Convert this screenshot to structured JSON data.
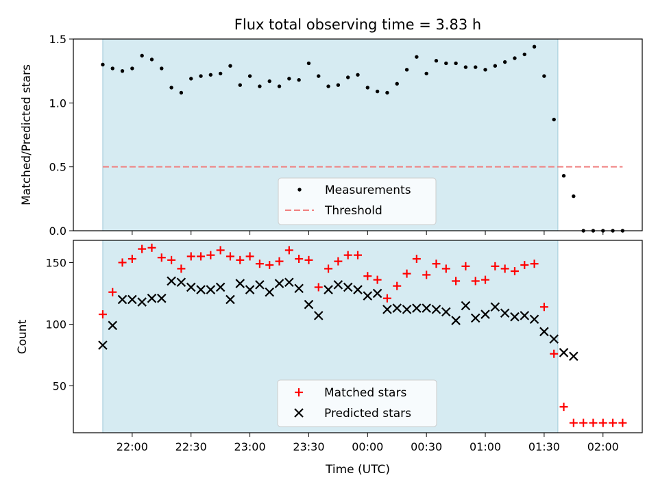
{
  "chart_data": [
    {
      "type": "scatter",
      "title": "Flux total observing time = 3.83 h",
      "xlabel": "",
      "ylabel": "Matched/Predicted stars",
      "ylim": [
        0,
        1.5
      ],
      "yticks": [
        "0.0",
        "0.5",
        "1.0",
        "1.5"
      ],
      "grid": false,
      "legend_position": "bottom-center",
      "x": [
        "21:45",
        "21:50",
        "21:55",
        "22:00",
        "22:05",
        "22:10",
        "22:15",
        "22:20",
        "22:25",
        "22:30",
        "22:35",
        "22:40",
        "22:45",
        "22:50",
        "22:55",
        "23:00",
        "23:05",
        "23:10",
        "23:15",
        "23:20",
        "23:25",
        "23:30",
        "23:35",
        "23:40",
        "23:45",
        "23:50",
        "23:55",
        "00:00",
        "00:05",
        "00:10",
        "00:15",
        "00:20",
        "00:25",
        "00:30",
        "00:35",
        "00:40",
        "00:45",
        "00:50",
        "00:55",
        "01:00",
        "01:05",
        "01:10",
        "01:15",
        "01:20",
        "01:25",
        "01:30",
        "01:35",
        "01:40",
        "01:45",
        "01:50",
        "01:55",
        "02:00",
        "02:05",
        "02:10"
      ],
      "series": [
        {
          "name": "Measurements",
          "marker": "dot",
          "color": "#000000",
          "values": [
            1.3,
            1.27,
            1.25,
            1.27,
            1.37,
            1.34,
            1.27,
            1.12,
            1.08,
            1.19,
            1.21,
            1.22,
            1.23,
            1.29,
            1.14,
            1.21,
            1.13,
            1.17,
            1.13,
            1.19,
            1.18,
            1.31,
            1.21,
            1.13,
            1.14,
            1.2,
            1.22,
            1.12,
            1.09,
            1.08,
            1.15,
            1.26,
            1.36,
            1.23,
            1.33,
            1.31,
            1.31,
            1.28,
            1.28,
            1.26,
            1.29,
            1.32,
            1.35,
            1.38,
            1.44,
            1.21,
            0.87,
            0.43,
            0.27,
            0.0,
            0.0,
            0.0,
            0.0,
            0.0
          ]
        },
        {
          "name": "Threshold",
          "style": "dashed",
          "color": "#f08080",
          "values": [
            0.5,
            0.5
          ],
          "x_range": [
            "21:45",
            "02:10"
          ]
        }
      ],
      "shaded_region": {
        "x_start": "21:45",
        "x_end": "01:37",
        "color": "#add8e6"
      }
    },
    {
      "type": "scatter",
      "title": "",
      "xlabel": "Time (UTC)",
      "ylabel": "Count",
      "ylim": [
        12,
        168
      ],
      "yticks": [
        "50",
        "100",
        "150"
      ],
      "xticks": [
        "22:00",
        "22:30",
        "23:00",
        "23:30",
        "00:00",
        "00:30",
        "01:00",
        "01:30",
        "02:00"
      ],
      "grid": false,
      "legend_position": "bottom-center",
      "x": [
        "21:45",
        "21:50",
        "21:55",
        "22:00",
        "22:05",
        "22:10",
        "22:15",
        "22:20",
        "22:25",
        "22:30",
        "22:35",
        "22:40",
        "22:45",
        "22:50",
        "22:55",
        "23:00",
        "23:05",
        "23:10",
        "23:15",
        "23:20",
        "23:25",
        "23:30",
        "23:35",
        "23:40",
        "23:45",
        "23:50",
        "23:55",
        "00:00",
        "00:05",
        "00:10",
        "00:15",
        "00:20",
        "00:25",
        "00:30",
        "00:35",
        "00:40",
        "00:45",
        "00:50",
        "00:55",
        "01:00",
        "01:05",
        "01:10",
        "01:15",
        "01:20",
        "01:25",
        "01:30",
        "01:35",
        "01:40",
        "01:45",
        "01:50",
        "01:55",
        "02:00",
        "02:05",
        "02:10"
      ],
      "series": [
        {
          "name": "Matched stars",
          "marker": "plus",
          "color": "#ff0000",
          "values": [
            108,
            126,
            150,
            153,
            161,
            162,
            154,
            152,
            145,
            155,
            155,
            156,
            160,
            155,
            152,
            155,
            149,
            148,
            151,
            160,
            153,
            152,
            130,
            145,
            151,
            156,
            156,
            139,
            136,
            121,
            131,
            141,
            153,
            140,
            149,
            145,
            135,
            147,
            135,
            136,
            147,
            145,
            143,
            148,
            149,
            114,
            76,
            33,
            20,
            20,
            20,
            20,
            20,
            20
          ]
        },
        {
          "name": "Predicted stars",
          "marker": "x",
          "color": "#000000",
          "values": [
            83,
            99,
            120,
            120,
            118,
            121,
            121,
            135,
            134,
            130,
            128,
            128,
            130,
            120,
            133,
            128,
            132,
            126,
            133,
            134,
            129,
            116,
            107,
            128,
            132,
            130,
            128,
            123,
            125,
            112,
            113,
            112,
            113,
            113,
            112,
            110,
            103,
            115,
            105,
            108,
            114,
            109,
            106,
            107,
            104,
            94,
            88,
            77,
            74
          ]
        }
      ],
      "shaded_region": {
        "x_start": "21:45",
        "x_end": "01:37",
        "color": "#add8e6"
      }
    }
  ]
}
